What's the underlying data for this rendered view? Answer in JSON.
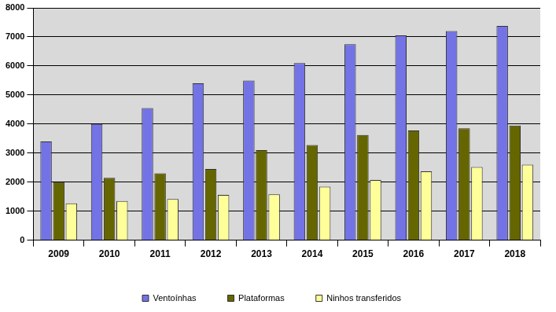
{
  "chart_data": {
    "type": "bar",
    "categories": [
      "2009",
      "2010",
      "2011",
      "2012",
      "2013",
      "2014",
      "2015",
      "2016",
      "2017",
      "2018"
    ],
    "series": [
      {
        "name": "Ventoínhas",
        "color": "#7373e6",
        "values": [
          3400,
          4000,
          4550,
          5400,
          5500,
          6100,
          6750,
          7050,
          7200,
          7380
        ]
      },
      {
        "name": "Plataformas",
        "color": "#666600",
        "values": [
          2000,
          2150,
          2300,
          2450,
          3100,
          3280,
          3620,
          3780,
          3850,
          3950
        ]
      },
      {
        "name": "Ninhos transferidos",
        "color": "#ffff99",
        "values": [
          1270,
          1350,
          1420,
          1560,
          1580,
          1840,
          2070,
          2370,
          2520,
          2600
        ]
      }
    ],
    "ylim": [
      0,
      8000
    ],
    "yticks": [
      0,
      1000,
      2000,
      3000,
      4000,
      5000,
      6000,
      7000,
      8000
    ],
    "grid": true,
    "legend": "bottom"
  }
}
